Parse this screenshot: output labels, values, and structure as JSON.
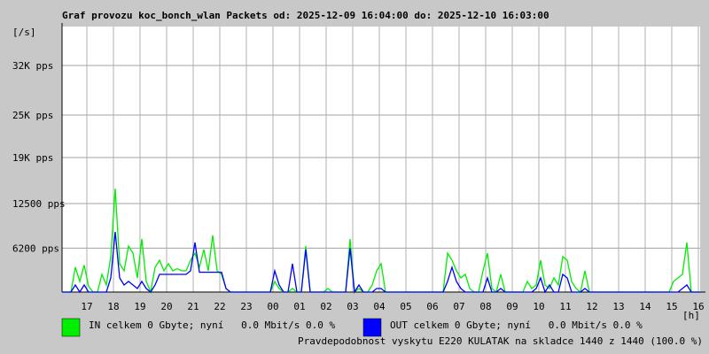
{
  "chart_data": {
    "type": "line",
    "title": "Graf provozu koc_bonch_wlan Packets od: 2025-12-09 16:04:00 do: 2025-12-10 16:03:00",
    "y_unit": "[/s]",
    "x_unit": "[h]",
    "x": [
      0,
      10,
      20,
      30,
      40,
      50,
      60,
      70,
      80,
      90,
      100,
      110,
      120,
      130,
      140,
      150,
      160,
      170,
      180,
      190,
      200,
      210,
      220,
      230,
      240,
      250,
      260,
      270,
      280,
      290,
      300,
      310,
      320,
      330,
      340,
      350,
      360,
      370,
      380,
      390,
      400,
      410,
      420,
      430,
      440,
      450,
      460,
      470,
      480,
      490,
      500,
      510,
      520,
      530,
      540,
      550,
      560,
      570,
      580,
      590,
      600,
      610,
      620,
      630,
      640,
      650,
      660,
      670,
      680,
      690,
      700,
      710,
      720,
      730,
      740,
      750,
      760,
      770,
      780,
      790,
      800,
      810,
      820,
      830,
      840,
      850,
      860,
      870,
      880,
      890,
      900,
      910,
      920,
      930,
      940,
      950,
      960,
      970,
      980,
      990,
      1000,
      1010,
      1020,
      1030,
      1040,
      1050,
      1060,
      1070,
      1080,
      1090,
      1100,
      1110,
      1120,
      1130,
      1140,
      1150,
      1160,
      1170,
      1180,
      1190,
      1200,
      1210,
      1220,
      1230,
      1240,
      1250,
      1260,
      1270,
      1280,
      1290,
      1300,
      1310,
      1320,
      1330,
      1340,
      1350,
      1360,
      1370,
      1380,
      1390,
      1400,
      1410,
      1420,
      1430,
      1440
    ],
    "series": [
      {
        "name": "IN celkem 0 Gbyte; nyní   0.0 Mbit/s 0.0 %",
        "color": "#00ee00",
        "values": [
          0,
          0,
          0,
          3500,
          1500,
          3800,
          800,
          0,
          0,
          2500,
          1000,
          5000,
          14600,
          4000,
          3000,
          6500,
          5500,
          2000,
          7500,
          1500,
          0,
          3500,
          4500,
          3000,
          4000,
          3000,
          3300,
          3000,
          3000,
          4500,
          5500,
          3500,
          6000,
          3000,
          8000,
          3000,
          2500,
          500,
          0,
          0,
          0,
          0,
          0,
          0,
          0,
          0,
          0,
          0,
          1500,
          500,
          0,
          0,
          500,
          0,
          0,
          6500,
          0,
          0,
          0,
          0,
          500,
          0,
          0,
          0,
          0,
          7500,
          0,
          500,
          0,
          0,
          1000,
          3000,
          4000,
          0,
          0,
          0,
          0,
          0,
          0,
          0,
          0,
          0,
          0,
          0,
          0,
          0,
          0,
          5500,
          4500,
          3000,
          2000,
          2500,
          500,
          0,
          0,
          3000,
          5500,
          500,
          0,
          2500,
          0,
          0,
          0,
          0,
          0,
          1500,
          500,
          1000,
          4500,
          1000,
          500,
          2000,
          1000,
          5000,
          4500,
          1500,
          500,
          0,
          3000,
          0,
          0,
          0,
          0,
          0,
          0,
          0,
          0,
          0,
          0,
          0,
          0,
          0,
          0,
          0,
          0,
          0,
          0,
          0,
          1500,
          2000,
          2500,
          7000,
          0,
          0,
          0
        ]
      },
      {
        "name": "OUT celkem 0 Gbyte; nyní   0.0 Mbit/s 0.0 %",
        "color": "#0000ff",
        "values": [
          0,
          0,
          0,
          1000,
          0,
          1000,
          0,
          0,
          0,
          0,
          0,
          2000,
          8500,
          2000,
          1000,
          1500,
          1000,
          500,
          1500,
          500,
          0,
          1000,
          2500,
          2500,
          2500,
          2500,
          2500,
          2500,
          2500,
          3000,
          7000,
          2800,
          2800,
          2800,
          2800,
          2800,
          2800,
          500,
          0,
          0,
          0,
          0,
          0,
          0,
          0,
          0,
          0,
          0,
          3000,
          1000,
          0,
          0,
          4000,
          0,
          0,
          6000,
          0,
          0,
          0,
          0,
          0,
          0,
          0,
          0,
          0,
          6200,
          0,
          1000,
          0,
          0,
          0,
          500,
          500,
          0,
          0,
          0,
          0,
          0,
          0,
          0,
          0,
          0,
          0,
          0,
          0,
          0,
          0,
          1500,
          3500,
          1500,
          500,
          0,
          0,
          0,
          0,
          0,
          2000,
          0,
          0,
          500,
          0,
          0,
          0,
          0,
          0,
          0,
          0,
          500,
          2000,
          0,
          1000,
          0,
          0,
          2500,
          2000,
          0,
          0,
          0,
          500,
          0,
          0,
          0,
          0,
          0,
          0,
          0,
          0,
          0,
          0,
          0,
          0,
          0,
          0,
          0,
          0,
          0,
          0,
          0,
          0,
          0,
          500,
          1000,
          0,
          0,
          0
        ]
      }
    ],
    "xlim": [
      0,
      1440
    ],
    "xticks": [
      {
        "value": 56,
        "label": "17"
      },
      {
        "value": 116,
        "label": "18"
      },
      {
        "value": 176,
        "label": "19"
      },
      {
        "value": 236,
        "label": "20"
      },
      {
        "value": 296,
        "label": "21"
      },
      {
        "value": 356,
        "label": "22"
      },
      {
        "value": 416,
        "label": "23"
      },
      {
        "value": 476,
        "label": "00"
      },
      {
        "value": 536,
        "label": "01"
      },
      {
        "value": 596,
        "label": "02"
      },
      {
        "value": 656,
        "label": "03"
      },
      {
        "value": 716,
        "label": "04"
      },
      {
        "value": 776,
        "label": "05"
      },
      {
        "value": 836,
        "label": "06"
      },
      {
        "value": 896,
        "label": "07"
      },
      {
        "value": 956,
        "label": "08"
      },
      {
        "value": 1016,
        "label": "09"
      },
      {
        "value": 1076,
        "label": "10"
      },
      {
        "value": 1136,
        "label": "11"
      },
      {
        "value": 1196,
        "label": "12"
      },
      {
        "value": 1256,
        "label": "13"
      },
      {
        "value": 1316,
        "label": "14"
      },
      {
        "value": 1376,
        "label": "15"
      },
      {
        "value": 1436,
        "label": "16"
      }
    ],
    "ylim": [
      0,
      37500
    ],
    "yticks": [
      {
        "value": 6200,
        "label": "6200 pps"
      },
      {
        "value": 12500,
        "label": "12500 pps"
      },
      {
        "value": 19000,
        "label": "19K pps"
      },
      {
        "value": 25000,
        "label": "25K pps"
      },
      {
        "value": 32000,
        "label": "32K pps"
      }
    ],
    "grid": true,
    "footer": "Pravdepodobnost vyskytu E220 KULATAK na skladce 1440 z 1440 (100.0 %)",
    "footer_color": "#ff0000"
  }
}
